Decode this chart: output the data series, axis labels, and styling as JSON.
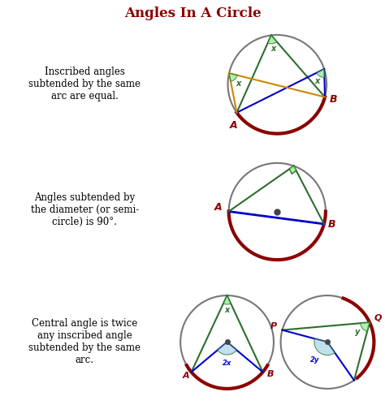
{
  "title": "Angles In A Circle",
  "title_color": "#8B0000",
  "bg_color": "#ffffff",
  "grid_color": "#888888",
  "row1_text": "Inscribed angles\nsubtended by the same\narc are equal.",
  "row2_text": "Angles subtended by\nthe diameter (or semi-\ncircle) is 90°.",
  "row3_text": "Central angle is twice\nany inscribed angle\nsubtended by the same\narc.",
  "circle_color": "#777777",
  "arc_color": "#8B0000",
  "green_color": "#2d6e2d",
  "blue_color": "#0000CD",
  "orange_color": "#CC8800",
  "label_color": "#8B0000",
  "angle_fill_green": "#90EE90",
  "angle_fill_blue": "#ADD8E6",
  "center_dot_color": "#444444"
}
